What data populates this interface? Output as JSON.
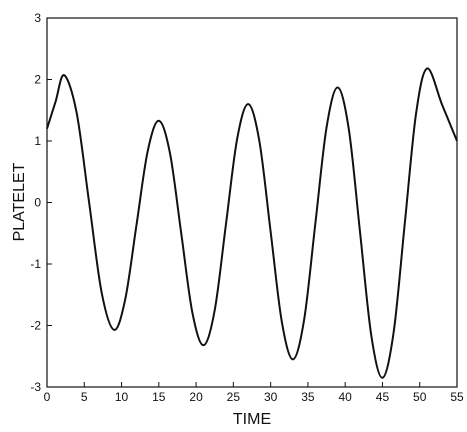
{
  "chart_data": {
    "type": "line",
    "x_label": "TIME",
    "y_label": "PLATELET",
    "x": [
      0,
      1.15,
      2.3,
      3.975,
      5.65,
      7.325,
      9,
      10.5,
      12,
      13.5,
      15,
      16.5,
      18,
      19.5,
      21,
      22.5,
      24,
      25.5,
      27,
      28.5,
      30,
      31.5,
      33,
      34.5,
      36,
      37.5,
      39,
      40.5,
      42,
      43.5,
      45,
      46.5,
      48,
      49.5,
      51,
      53,
      55
    ],
    "series": [
      {
        "color": "#111111",
        "values": [
          1.2,
          1.64,
          2.07,
          1.46,
          0,
          -1.46,
          -2.07,
          -1.57,
          -0.37,
          0.83,
          1.33,
          0.8,
          -0.495,
          -1.79,
          -2.32,
          -1.75,
          -0.36,
          1.03,
          1.6,
          0.99,
          -0.475,
          -1.94,
          -2.55,
          -1.9,
          -0.34,
          1.22,
          1.87,
          1.18,
          -0.49,
          -2.16,
          -2.85,
          -2.11,
          -0.335,
          1.44,
          2.18,
          1.59,
          1.0
        ]
      }
    ],
    "xlim": [
      0,
      55
    ],
    "xticks": [
      0,
      5,
      10,
      15,
      20,
      25,
      30,
      35,
      40,
      45,
      50,
      55
    ],
    "ylim": [
      -3,
      3
    ],
    "yticks": [
      -3,
      -2,
      -1,
      0,
      1,
      2,
      3
    ]
  }
}
